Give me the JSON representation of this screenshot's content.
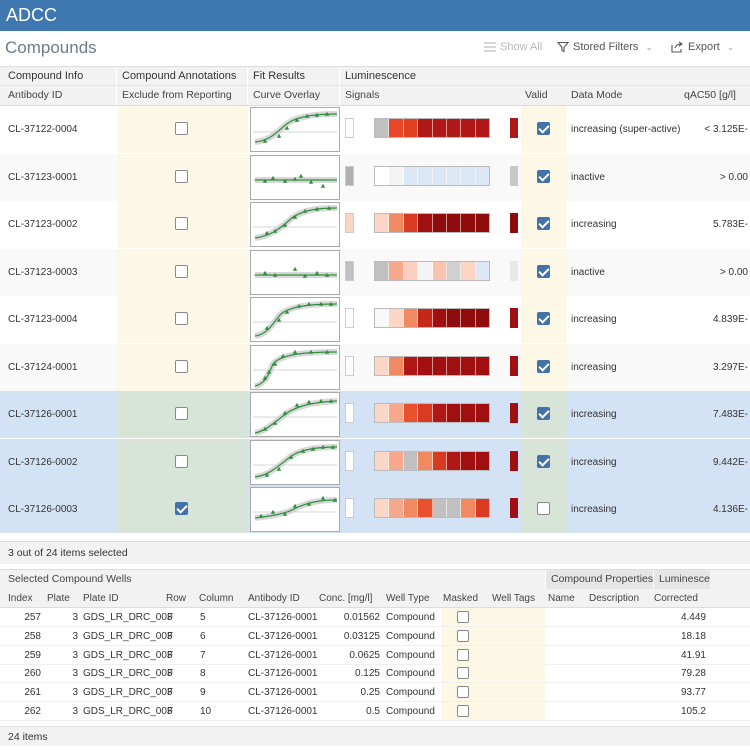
{
  "app": {
    "title": "ADCC"
  },
  "page": {
    "title": "Compounds"
  },
  "toolbar": {
    "show_all": "Show All",
    "stored_filters": "Stored Filters",
    "export": "Export"
  },
  "compounds_grid": {
    "groups": {
      "compound_info": "Compound Info",
      "compound_annotations": "Compound Annotations",
      "fit_results": "Fit Results",
      "luminescence": "Luminescence"
    },
    "columns": {
      "antibody_id": "Antibody ID",
      "exclude": "Exclude from Reporting",
      "curve_overlay": "Curve Overlay",
      "signals": "Signals",
      "valid": "Valid",
      "data_mode": "Data Mode",
      "qac50": "qAC50 [g/l]"
    },
    "rows": [
      {
        "id": "CL-37122-0004",
        "exclude": false,
        "valid": true,
        "data_mode": "increasing (super-active)",
        "qac50": "< 3.125E-",
        "selected": false,
        "heat": [
          "#c0c0c0",
          "#e8462a",
          "#e0401f",
          "#b01818",
          "#b01818",
          "#b01818",
          "#b01818",
          "#b01818"
        ],
        "stub": "#fff",
        "end": "#b01818"
      },
      {
        "id": "CL-37123-0001",
        "exclude": false,
        "valid": true,
        "data_mode": "inactive",
        "qac50": "> 0.00",
        "selected": false,
        "heat": [
          "#ffffff",
          "#f4f4f4",
          "#dde8f6",
          "#dde8f6",
          "#dde8f6",
          "#dde8f6",
          "#dde8f6",
          "#dde8f6"
        ],
        "stub": "#b0b0b0",
        "end": "#c8c8c8"
      },
      {
        "id": "CL-37123-0002",
        "exclude": false,
        "valid": true,
        "data_mode": "increasing",
        "qac50": "5.783E-",
        "selected": false,
        "heat": [
          "#fbd6c4",
          "#f08a62",
          "#d83a22",
          "#a01010",
          "#8e0c0c",
          "#8e0c0c",
          "#8e0c0c",
          "#8e0c0c"
        ],
        "stub": "#fbd6c4",
        "end": "#8e0c0c"
      },
      {
        "id": "CL-37123-0003",
        "exclude": false,
        "valid": true,
        "data_mode": "inactive",
        "qac50": "> 0.00",
        "selected": false,
        "heat": [
          "#c0c0c0",
          "#f6a88c",
          "#fbd0c0",
          "#f4f4f4",
          "#f8c4b2",
          "#d0d0d0",
          "#fbd6c4",
          "#dde8f6"
        ],
        "stub": "#c0c0c0",
        "end": "#e8e8e8"
      },
      {
        "id": "CL-37123-0004",
        "exclude": false,
        "valid": true,
        "data_mode": "increasing",
        "qac50": "4.839E-",
        "selected": false,
        "heat": [
          "#f8f8f8",
          "#fbd6c4",
          "#f08a62",
          "#c4281a",
          "#a01010",
          "#8e0c0c",
          "#8e0c0c",
          "#8e0c0c"
        ],
        "stub": "#ffffff",
        "end": "#a01010"
      },
      {
        "id": "CL-37124-0001",
        "exclude": false,
        "valid": true,
        "data_mode": "increasing",
        "qac50": "3.297E-",
        "selected": false,
        "heat": [
          "#fbd6c4",
          "#f08a62",
          "#b01818",
          "#a01010",
          "#a01010",
          "#a01010",
          "#a01010",
          "#a01010"
        ],
        "stub": "#ffffff",
        "end": "#a01010"
      },
      {
        "id": "CL-37126-0001",
        "exclude": false,
        "valid": true,
        "data_mode": "increasing",
        "qac50": "7.483E-",
        "selected": true,
        "heat": [
          "#fbd6c4",
          "#f6a88c",
          "#e8502e",
          "#d83a22",
          "#b01818",
          "#a01010",
          "#a01010",
          "#a01010"
        ],
        "stub": "#ffffff",
        "end": "#a01010"
      },
      {
        "id": "CL-37126-0002",
        "exclude": false,
        "valid": true,
        "data_mode": "increasing",
        "qac50": "9.442E-",
        "selected": true,
        "heat": [
          "#fbd6c4",
          "#f6a88c",
          "#c0c0c0",
          "#f08a62",
          "#d83a22",
          "#b01818",
          "#a01010",
          "#a01010"
        ],
        "stub": "#ffffff",
        "end": "#a01010"
      },
      {
        "id": "CL-37126-0003",
        "exclude": true,
        "valid": false,
        "data_mode": "increasing",
        "qac50": "4.136E-",
        "selected": true,
        "heat": [
          "#fbd6c4",
          "#f6a88c",
          "#f08a62",
          "#e8502e",
          "#c0c0c0",
          "#c0c0c0",
          "#f08a62",
          "#d83a22"
        ],
        "stub": "#ffffff",
        "end": "#a01010"
      }
    ]
  },
  "compounds_status": "3 out of 24 items selected",
  "wells_grid": {
    "groups": {
      "selected_wells": "Selected Compound Wells",
      "compound_properties": "Compound Properties",
      "luminescence": "Luminescen"
    },
    "columns": {
      "index": "Index",
      "plate": "Plate",
      "plate_id": "Plate ID",
      "row": "Row",
      "column": "Column",
      "antibody_id": "Antibody ID",
      "conc": "Conc. [mg/l]",
      "well_type": "Well Type",
      "masked": "Masked",
      "well_tags": "Well Tags",
      "name": "Name",
      "description": "Description",
      "corrected": "Corrected"
    },
    "rows": [
      {
        "index": "257",
        "plate": "3",
        "plate_id": "GDS_LR_DRC_003",
        "row": "F",
        "column": "5",
        "antibody_id": "CL-37126-0001",
        "conc": "0.01562",
        "well_type": "Compound",
        "corrected": "4.449"
      },
      {
        "index": "258",
        "plate": "3",
        "plate_id": "GDS_LR_DRC_003",
        "row": "F",
        "column": "6",
        "antibody_id": "CL-37126-0001",
        "conc": "0.03125",
        "well_type": "Compound",
        "corrected": "18.18"
      },
      {
        "index": "259",
        "plate": "3",
        "plate_id": "GDS_LR_DRC_003",
        "row": "F",
        "column": "7",
        "antibody_id": "CL-37126-0001",
        "conc": "0.0625",
        "well_type": "Compound",
        "corrected": "41.91"
      },
      {
        "index": "260",
        "plate": "3",
        "plate_id": "GDS_LR_DRC_003",
        "row": "F",
        "column": "8",
        "antibody_id": "CL-37126-0001",
        "conc": "0.125",
        "well_type": "Compound",
        "corrected": "79.28"
      },
      {
        "index": "261",
        "plate": "3",
        "plate_id": "GDS_LR_DRC_003",
        "row": "F",
        "column": "9",
        "antibody_id": "CL-37126-0001",
        "conc": "0.25",
        "well_type": "Compound",
        "corrected": "93.77"
      },
      {
        "index": "262",
        "plate": "3",
        "plate_id": "GDS_LR_DRC_003",
        "row": "F",
        "column": "10",
        "antibody_id": "CL-37126-0001",
        "conc": "0.5",
        "well_type": "Compound",
        "corrected": "105.2"
      }
    ]
  },
  "wells_status": "24 items"
}
